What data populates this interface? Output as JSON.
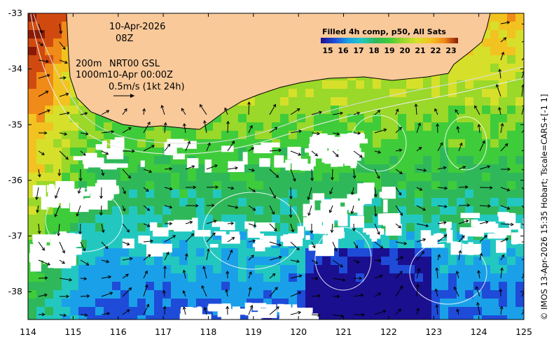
{
  "map": {
    "date_line": "10-Apr-2026",
    "time_line": "08Z",
    "contour_label_200": "200m",
    "contour_label_1000": "1000m",
    "product_line_1": "NRT00 GSL",
    "product_line_2": "10-Apr 00:00Z",
    "vector_scale": "0.5m/s (1kt 24h)",
    "colorbar_title": "Filled 4h comp, p50, All Sats",
    "colorbar_ticks": [
      "15",
      "16",
      "17",
      "18",
      "19",
      "20",
      "21",
      "22",
      "23"
    ],
    "credit": "© IMOS 13-Apr-2026 15:35 Hobart; Tscale=CARS+[-1 1]",
    "x_ticks": [
      "114",
      "115",
      "116",
      "117",
      "118",
      "119",
      "120",
      "121",
      "122",
      "123",
      "124",
      "125"
    ],
    "y_ticks": [
      "-33",
      "-34",
      "-35",
      "-36",
      "-37",
      "-38"
    ],
    "x_range": [
      114,
      125
    ],
    "y_range": [
      -38.5,
      -33
    ],
    "land_color": "#f9c99a",
    "palette": [
      "#1a0f8f",
      "#1e4bd8",
      "#1aa0e8",
      "#22c8c0",
      "#2fb85a",
      "#3fcc3a",
      "#9ad82a",
      "#d6e02a",
      "#f2c320",
      "#f08a18",
      "#d04a10",
      "#8a1a08"
    ]
  }
}
